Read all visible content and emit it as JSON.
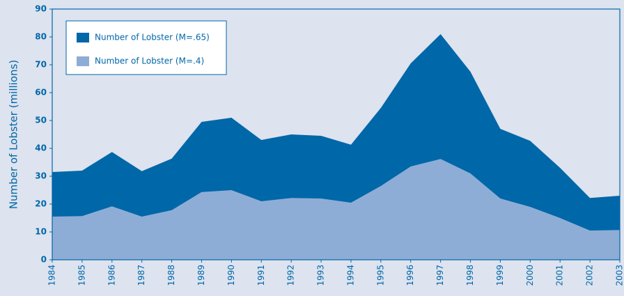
{
  "chart_data": {
    "type": "area",
    "y_label": "Number of Lobster (millions)",
    "x": [
      1984,
      1985,
      1986,
      1987,
      1988,
      1989,
      1990,
      1991,
      1992,
      1993,
      1994,
      1995,
      1996,
      1997,
      1998,
      1999,
      2000,
      2001,
      2002,
      2003
    ],
    "series": [
      {
        "name": "Number of Lobster (M=.65)",
        "color": "#0067a8",
        "values": [
          31.5,
          32,
          38.7,
          31.8,
          36.3,
          49.5,
          51,
          43,
          45,
          44.5,
          41.3,
          54.5,
          70.5,
          81,
          67.5,
          47,
          42.7,
          33,
          22.2,
          23
        ]
      },
      {
        "name": "Number of Lobster (M=.4)",
        "color": "#8eadd6",
        "values": [
          15.5,
          15.7,
          19.2,
          15.5,
          17.8,
          24.3,
          25,
          21,
          22.2,
          22,
          20.5,
          26.5,
          33.5,
          36.2,
          31,
          22,
          19,
          15,
          10.5,
          10.7
        ]
      }
    ],
    "xlim": [
      1984,
      2003
    ],
    "xticks": [
      1984,
      1985,
      1986,
      1987,
      1988,
      1989,
      1990,
      1991,
      1992,
      1993,
      1994,
      1995,
      1996,
      1997,
      1998,
      1999,
      2000,
      2001,
      2002,
      2003
    ],
    "ylim": [
      0,
      90
    ],
    "yticks": [
      0,
      10,
      20,
      30,
      40,
      50,
      60,
      70,
      80,
      90
    ],
    "grid": false,
    "legend": "top-left"
  }
}
